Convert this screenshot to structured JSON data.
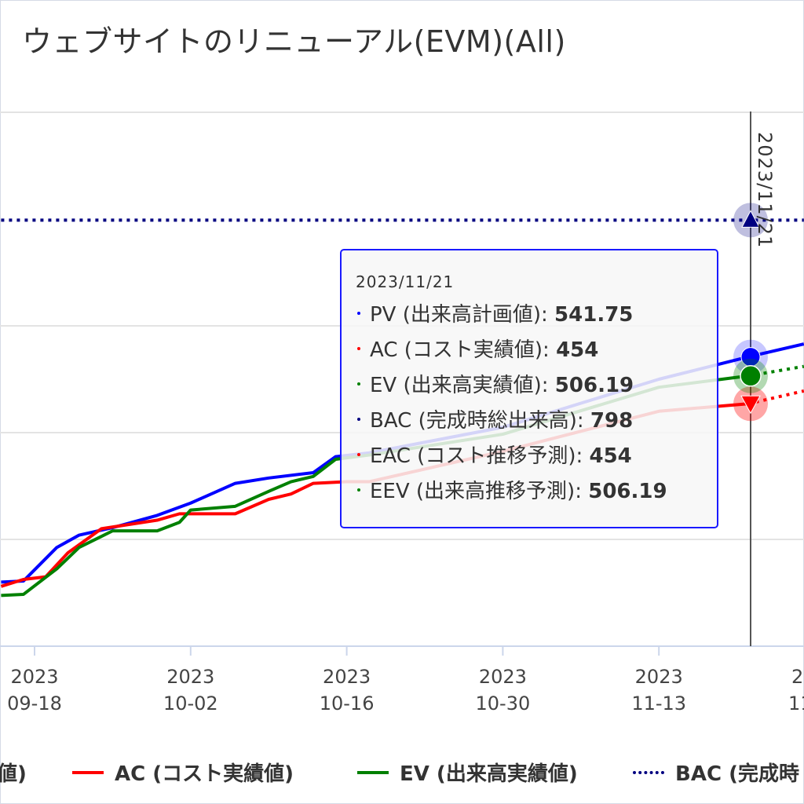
{
  "title": "ウェブサイトのリニューアル(EVM)(All)",
  "crosshair_date": "2023/11/21",
  "tooltip": {
    "date": "2023/11/21",
    "rows": [
      {
        "label": "PV (出来高計画値):",
        "value": "541.75",
        "color": "#0000ff"
      },
      {
        "label": "AC (コスト実績値):",
        "value": "454",
        "color": "#ff0000"
      },
      {
        "label": "EV (出来高実績値):",
        "value": "506.19",
        "color": "#008000"
      },
      {
        "label": "BAC (完成時総出来高):",
        "value": "798",
        "color": "#000080"
      },
      {
        "label": "EAC (コスト推移予測):",
        "value": "454",
        "color": "#ff0000"
      },
      {
        "label": "EEV (出来高推移予測):",
        "value": "506.19",
        "color": "#008000"
      }
    ]
  },
  "legend": [
    {
      "label": "値)",
      "color": "#0000ff",
      "style": "solid",
      "swatch": false
    },
    {
      "label": "AC (コスト実績値)",
      "color": "#ff0000",
      "style": "solid",
      "swatch": true
    },
    {
      "label": "EV (出来高実績値)",
      "color": "#008000",
      "style": "solid",
      "swatch": true
    },
    {
      "label": "BAC (完成時",
      "color": "#000080",
      "style": "dotted",
      "swatch": true
    }
  ],
  "chart_data": {
    "type": "line",
    "xlim": [
      "2023-09-15",
      "2023-11-26"
    ],
    "ylim": [
      0,
      1000
    ],
    "grid": true,
    "y_gridlines": [
      0,
      200,
      400,
      600,
      800,
      1000
    ],
    "x_ticks": [
      {
        "year": "2023",
        "label": "09-18",
        "date": "2023-09-18"
      },
      {
        "year": "2023",
        "label": "10-02",
        "date": "2023-10-02"
      },
      {
        "year": "2023",
        "label": "10-16",
        "date": "2023-10-16"
      },
      {
        "year": "2023",
        "label": "10-30",
        "date": "2023-10-30"
      },
      {
        "year": "2023",
        "label": "11-13",
        "date": "2023-11-13"
      },
      {
        "year": "2",
        "label": "11",
        "date": "2023-11-27"
      }
    ],
    "legend_position": "bottom",
    "series": [
      {
        "name": "PV (出来高計画値)",
        "color": "#0000ff",
        "style": "solid",
        "x": [
          "2023-09-15",
          "2023-09-17",
          "2023-09-20",
          "2023-09-22",
          "2023-09-25",
          "2023-09-29",
          "2023-10-02",
          "2023-10-06",
          "2023-10-09",
          "2023-10-13",
          "2023-10-15",
          "2023-10-18",
          "2023-10-30",
          "2023-11-13",
          "2023-11-21",
          "2023-11-26"
        ],
        "y": [
          120,
          122,
          185,
          208,
          222,
          245,
          268,
          305,
          315,
          325,
          355,
          362,
          410,
          500,
          541.75,
          566
        ]
      },
      {
        "name": "AC (コスト実績値)",
        "color": "#ff0000",
        "style": "solid",
        "x": [
          "2023-09-15",
          "2023-09-17",
          "2023-09-19",
          "2023-09-21",
          "2023-09-24",
          "2023-09-29",
          "2023-10-01",
          "2023-10-06",
          "2023-10-09",
          "2023-10-11",
          "2023-10-13",
          "2023-10-16",
          "2023-10-18",
          "2023-10-30",
          "2023-11-13",
          "2023-11-21"
        ],
        "y": [
          112,
          125,
          130,
          175,
          220,
          236,
          248,
          248,
          275,
          285,
          305,
          308,
          308,
          365,
          440,
          454
        ]
      },
      {
        "name": "EV (出来高実績値)",
        "color": "#008000",
        "style": "solid",
        "x": [
          "2023-09-15",
          "2023-09-17",
          "2023-09-20",
          "2023-09-22",
          "2023-09-25",
          "2023-09-29",
          "2023-10-01",
          "2023-10-02",
          "2023-10-06",
          "2023-10-09",
          "2023-10-11",
          "2023-10-13",
          "2023-10-15",
          "2023-10-18",
          "2023-10-30",
          "2023-11-13",
          "2023-11-21"
        ],
        "y": [
          95,
          97,
          145,
          185,
          216,
          216,
          232,
          255,
          262,
          290,
          308,
          318,
          350,
          358,
          397,
          485,
          506.19
        ]
      },
      {
        "name": "BAC (完成時総出来高)",
        "color": "#000080",
        "style": "dotted",
        "x": [
          "2023-09-15",
          "2023-11-26"
        ],
        "y": [
          798,
          798
        ]
      },
      {
        "name": "EAC (コスト推移予測)",
        "color": "#ff0000",
        "style": "dotted",
        "x": [
          "2023-11-21",
          "2023-11-26"
        ],
        "y": [
          454,
          478
        ]
      },
      {
        "name": "EEV (出来高推移予測)",
        "color": "#008000",
        "style": "dotted",
        "x": [
          "2023-11-21",
          "2023-11-26"
        ],
        "y": [
          506.19,
          524
        ]
      }
    ]
  }
}
